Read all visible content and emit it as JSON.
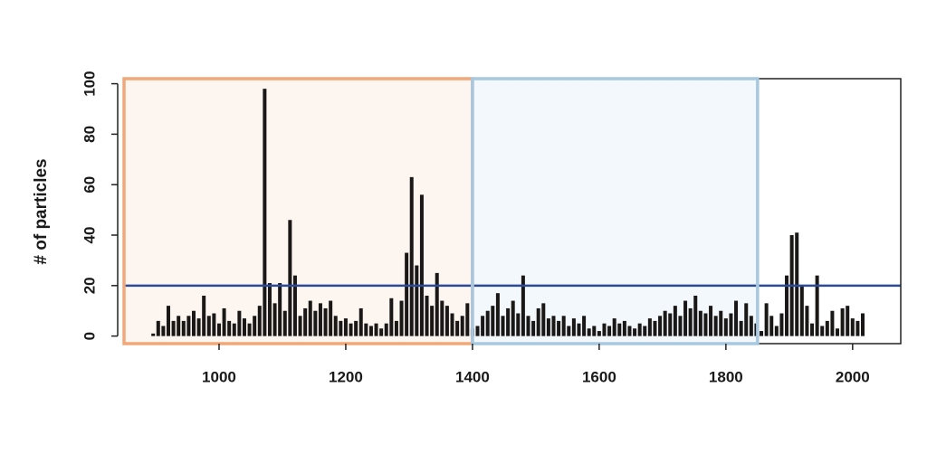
{
  "chart_data": {
    "type": "spike",
    "y_label": "# of particles",
    "x": [
      896,
      904,
      912,
      920,
      928,
      936,
      944,
      952,
      960,
      968,
      976,
      984,
      992,
      1000,
      1008,
      1016,
      1024,
      1032,
      1040,
      1048,
      1056,
      1064,
      1072,
      1080,
      1088,
      1096,
      1104,
      1112,
      1120,
      1128,
      1136,
      1144,
      1152,
      1160,
      1168,
      1176,
      1184,
      1192,
      1200,
      1208,
      1216,
      1224,
      1232,
      1240,
      1248,
      1256,
      1264,
      1272,
      1280,
      1288,
      1296,
      1304,
      1312,
      1320,
      1328,
      1336,
      1344,
      1352,
      1360,
      1368,
      1376,
      1384,
      1392,
      1400,
      1408,
      1416,
      1424,
      1432,
      1440,
      1448,
      1456,
      1464,
      1472,
      1480,
      1488,
      1496,
      1504,
      1512,
      1520,
      1528,
      1536,
      1544,
      1552,
      1560,
      1568,
      1576,
      1584,
      1592,
      1600,
      1608,
      1616,
      1624,
      1632,
      1640,
      1648,
      1656,
      1664,
      1672,
      1680,
      1688,
      1696,
      1704,
      1712,
      1720,
      1728,
      1736,
      1744,
      1752,
      1760,
      1768,
      1776,
      1784,
      1792,
      1800,
      1808,
      1816,
      1824,
      1832,
      1840,
      1848,
      1856,
      1864,
      1872,
      1880,
      1888,
      1896,
      1904,
      1912,
      1920,
      1928,
      1936,
      1944,
      1952,
      1960,
      1968,
      1976,
      1984,
      1992,
      2000,
      2008,
      2016
    ],
    "values": [
      1,
      6,
      4,
      12,
      6,
      8,
      6,
      8,
      10,
      7,
      16,
      8,
      9,
      5,
      11,
      6,
      5,
      10,
      7,
      5,
      8,
      12,
      98,
      21,
      13,
      21,
      10,
      46,
      24,
      8,
      11,
      14,
      10,
      13,
      11,
      14,
      8,
      6,
      7,
      5,
      6,
      11,
      5,
      4,
      5,
      3,
      5,
      15,
      6,
      14,
      33,
      63,
      28,
      56,
      16,
      12,
      25,
      14,
      12,
      9,
      6,
      8,
      13,
      3,
      4,
      8,
      10,
      12,
      17,
      8,
      11,
      14,
      9,
      24,
      8,
      6,
      11,
      13,
      7,
      8,
      6,
      8,
      4,
      7,
      5,
      8,
      3,
      4,
      2,
      5,
      4,
      7,
      5,
      6,
      4,
      3,
      5,
      4,
      7,
      6,
      8,
      10,
      9,
      12,
      8,
      14,
      11,
      16,
      10,
      9,
      12,
      8,
      10,
      7,
      9,
      14,
      6,
      13,
      8,
      5,
      2,
      13,
      8,
      4,
      9,
      24,
      40,
      41,
      20,
      12,
      5,
      24,
      4,
      6,
      10,
      3,
      11,
      12,
      7,
      6,
      9
    ],
    "color": "#1a1717",
    "xlim": [
      850,
      2076
    ],
    "ylim": [
      -3,
      102
    ],
    "xticks": [
      1000,
      1200,
      1400,
      1600,
      1800,
      2000
    ],
    "yticks": [
      0,
      20,
      40,
      60,
      80,
      100
    ],
    "regions": [
      {
        "x0": 850,
        "x1": 1400,
        "color": "#f0a878",
        "fill": "#fdf6f0"
      },
      {
        "x0": 1400,
        "x1": 1850,
        "color": "#a8c8e0",
        "fill": "#f3f8fc"
      }
    ],
    "hline": 20,
    "hline_color": "#2b4a99"
  }
}
